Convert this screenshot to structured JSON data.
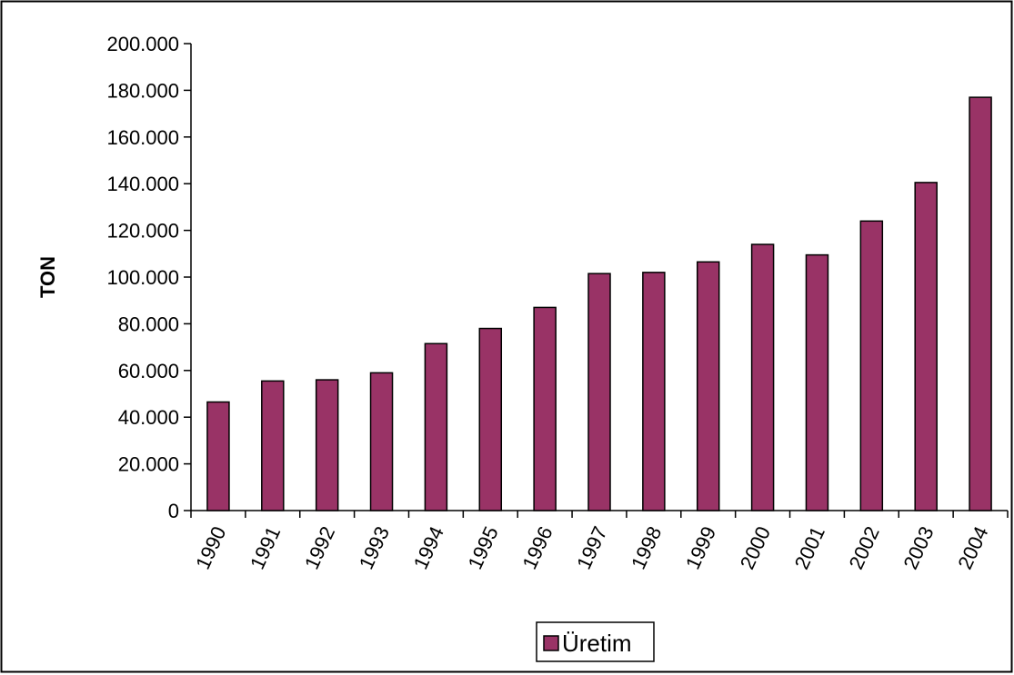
{
  "chart_data": {
    "type": "bar",
    "categories": [
      "1990",
      "1991",
      "1992",
      "1993",
      "1994",
      "1995",
      "1996",
      "1997",
      "1998",
      "1999",
      "2000",
      "2001",
      "2002",
      "2003",
      "2004"
    ],
    "series": [
      {
        "name": "Üretim",
        "color": "#993366",
        "values": [
          46500,
          55500,
          56000,
          59000,
          71500,
          78000,
          87000,
          101500,
          102000,
          106500,
          114000,
          109500,
          124000,
          140500,
          177000
        ]
      }
    ],
    "ylabel": "TON",
    "xlabel": "",
    "ylim": [
      0,
      200000
    ],
    "ytick_values": [
      0,
      20000,
      40000,
      60000,
      80000,
      100000,
      120000,
      140000,
      160000,
      180000,
      200000
    ],
    "ytick_labels": [
      "0",
      "20.000",
      "40.000",
      "60.000",
      "80.000",
      "100.000",
      "120.000",
      "140.000",
      "160.000",
      "180.000",
      "200.000"
    ],
    "grid": false,
    "legend_position": "bottom-center"
  },
  "legend": {
    "label": "Üretim"
  }
}
